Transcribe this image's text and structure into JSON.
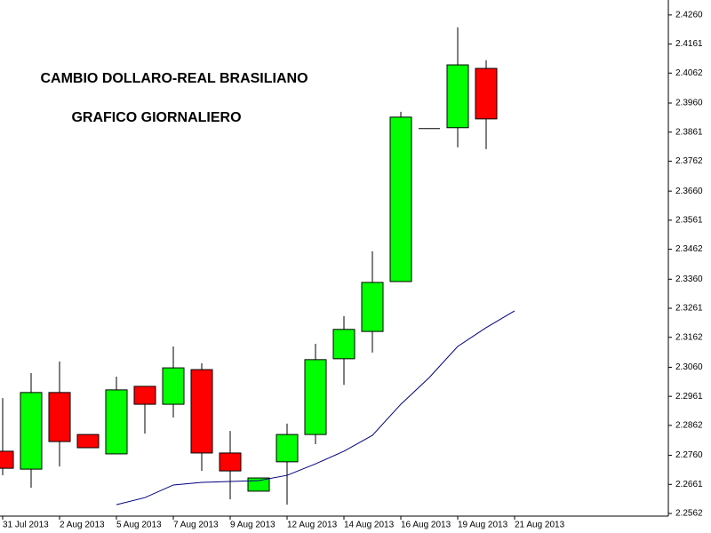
{
  "chart_data": {
    "type": "candlestick",
    "annotations": [
      "CAMBIO DOLLARO-REAL BRASILIANO",
      "GRAFICO GIORNALIERO"
    ],
    "categories": [
      "31 Jul 2013",
      null,
      "2 Aug 2013",
      null,
      "5 Aug 2013",
      null,
      "7 Aug 2013",
      null,
      "9 Aug 2013",
      null,
      "12 Aug 2013",
      null,
      "14 Aug 2013",
      null,
      "16 Aug 2013",
      null,
      "19 Aug 2013",
      null,
      "21 Aug 2013"
    ],
    "open": [
      2.2774,
      2.2713,
      2.2974,
      2.2831,
      2.2765,
      2.2995,
      2.2934,
      2.3052,
      2.2768,
      2.2638,
      2.2738,
      2.2831,
      2.3089,
      2.3182,
      2.3352,
      2.3873,
      2.3876,
      2.4078,
      null
    ],
    "high": [
      2.2955,
      2.304,
      2.308,
      2.2831,
      2.3028,
      2.2995,
      2.3131,
      2.3074,
      2.2843,
      2.2683,
      2.2868,
      2.314,
      2.3234,
      2.3455,
      2.393,
      2.3873,
      2.4218,
      2.4106,
      null
    ],
    "low": [
      2.2692,
      2.265,
      2.2722,
      2.2786,
      2.2765,
      2.2834,
      2.2889,
      2.2707,
      2.261,
      2.2638,
      2.2592,
      2.2798,
      2.3,
      2.311,
      2.3352,
      2.3873,
      2.3809,
      2.3803,
      null
    ],
    "close": [
      2.2716,
      2.2974,
      2.2807,
      2.2786,
      2.2983,
      2.2934,
      2.3058,
      2.2768,
      2.2707,
      2.2683,
      2.2831,
      2.3086,
      2.3189,
      2.3349,
      2.3912,
      2.3873,
      2.409,
      2.3906,
      null
    ],
    "up_color": "#00ff00",
    "down_color": "#ff0000",
    "overlay": {
      "color": "#000080",
      "values": [
        null,
        null,
        null,
        null,
        2.2592,
        2.2616,
        2.2659,
        2.2668,
        2.2671,
        2.2674,
        2.2692,
        2.2731,
        2.2774,
        2.2828,
        2.2934,
        2.3025,
        2.3131,
        2.3195,
        2.3252
      ]
    },
    "ylim": [
      2.2553,
      2.4311
    ],
    "yticks": [
      {
        "value": 2.426,
        "label": "2.4260"
      },
      2.4161,
      2.4062,
      {
        "value": 2.396,
        "label": "2.3960"
      },
      2.3861,
      2.3762,
      {
        "value": 2.366,
        "label": "2.3660"
      },
      2.3561,
      2.3462,
      {
        "value": 2.336,
        "label": "2.3360"
      },
      2.3261,
      2.3162,
      {
        "value": 2.306,
        "label": "2.3060"
      },
      2.2961,
      2.2862,
      {
        "value": 2.276,
        "label": "2.2760"
      },
      2.2661,
      2.2562
    ],
    "grid": false
  }
}
